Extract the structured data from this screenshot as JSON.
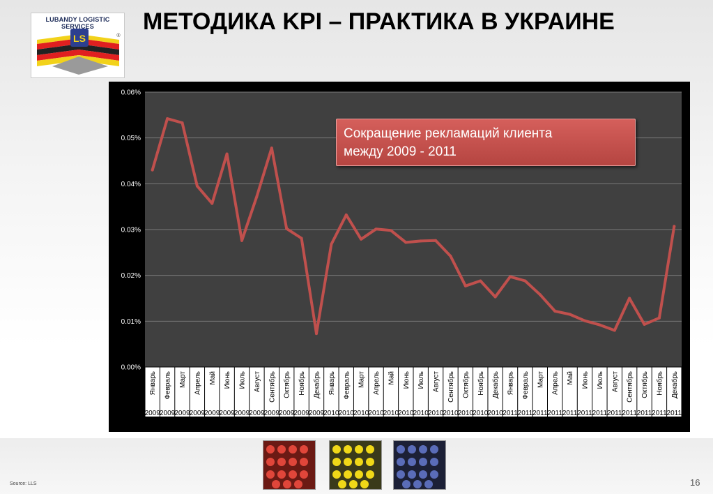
{
  "header": {
    "title": "МЕТОДИКА KPI – ПРАКТИКА В УКРАИНЕ",
    "logo_text": "LUBANDY LOGISTIC SERVICES",
    "logo_mark": "®"
  },
  "footer": {
    "source": "Source: LLS",
    "page_number": "16"
  },
  "colors": {
    "line": "#c0504d",
    "plot_bg": "#404040",
    "frame": "#000000",
    "callout_bg": "#c0504d"
  },
  "chart_data": {
    "type": "line",
    "title": "",
    "callout": "Сокращение рекламаций клиента между 2009 - 2011",
    "xlabel": "",
    "ylabel": "",
    "ylim": [
      0,
      0.06
    ],
    "ytick_labels": [
      "0.00%",
      "0.01%",
      "0.02%",
      "0.03%",
      "0.04%",
      "0.05%",
      "0.06%"
    ],
    "grid": true,
    "legend": "none",
    "categories": [
      {
        "month": "Январь",
        "year": "2009"
      },
      {
        "month": "Февраль",
        "year": "2009"
      },
      {
        "month": "Март",
        "year": "2009"
      },
      {
        "month": "Апрель",
        "year": "2009"
      },
      {
        "month": "Май",
        "year": "2009"
      },
      {
        "month": "Июнь",
        "year": "2009"
      },
      {
        "month": "Июль",
        "year": "2009"
      },
      {
        "month": "Август",
        "year": "2009"
      },
      {
        "month": "Сентябрь",
        "year": "2009"
      },
      {
        "month": "Октябрь",
        "year": "2009"
      },
      {
        "month": "Ноябрь",
        "year": "2009"
      },
      {
        "month": "Декабрь",
        "year": "2009"
      },
      {
        "month": "Январь",
        "year": "2010"
      },
      {
        "month": "Февраль",
        "year": "2010"
      },
      {
        "month": "Март",
        "year": "2010"
      },
      {
        "month": "Апрель",
        "year": "2010"
      },
      {
        "month": "Май",
        "year": "2010"
      },
      {
        "month": "Июнь",
        "year": "2010"
      },
      {
        "month": "Июль",
        "year": "2010"
      },
      {
        "month": "Август",
        "year": "2010"
      },
      {
        "month": "Сентябрь",
        "year": "2010"
      },
      {
        "month": "Октябрь",
        "year": "2010"
      },
      {
        "month": "Ноябрь",
        "year": "2010"
      },
      {
        "month": "Декабрь",
        "year": "2010"
      },
      {
        "month": "Январь",
        "year": "2011"
      },
      {
        "month": "Февраль",
        "year": "2011"
      },
      {
        "month": "Март",
        "year": "2011"
      },
      {
        "month": "Апрель",
        "year": "2011"
      },
      {
        "month": "Май",
        "year": "2011"
      },
      {
        "month": "Июнь",
        "year": "2011"
      },
      {
        "month": "Июль",
        "year": "2011"
      },
      {
        "month": "Август",
        "year": "2011"
      },
      {
        "month": "Сентябрь",
        "year": "2011"
      },
      {
        "month": "Октябрь",
        "year": "2011"
      },
      {
        "month": "Ноябрь",
        "year": "2011"
      },
      {
        "month": "Декабрь",
        "year": "2011"
      }
    ],
    "values": [
      0.043,
      0.0542,
      0.0533,
      0.0395,
      0.0357,
      0.0465,
      0.0276,
      0.0372,
      0.0478,
      0.0302,
      0.0281,
      0.0073,
      0.0268,
      0.0332,
      0.0279,
      0.0301,
      0.0298,
      0.0272,
      0.0275,
      0.0276,
      0.0242,
      0.0177,
      0.0188,
      0.0153,
      0.0197,
      0.0188,
      0.0158,
      0.0122,
      0.0115,
      0.0101,
      0.0092,
      0.008,
      0.015,
      0.0093,
      0.0107,
      0.0307
    ]
  }
}
